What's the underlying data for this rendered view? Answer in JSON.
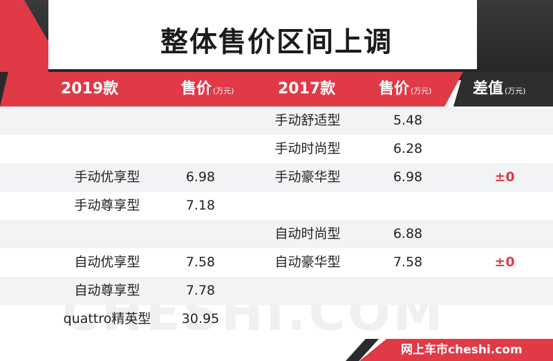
{
  "title": "整体售价区间上调",
  "header": {
    "col1": "2019款",
    "col2": "售价",
    "col2_unit": "(万元)",
    "col3": "2017款",
    "col4": "售价",
    "col4_unit": "(万元)",
    "col5": "差值",
    "col5_unit": "(万元)"
  },
  "rows": [
    {
      "model2019": "",
      "price2019": "",
      "model2017": "手动舒适型",
      "price2017": "5.48",
      "diff": ""
    },
    {
      "model2019": "",
      "price2019": "",
      "model2017": "手动时尚型",
      "price2017": "6.28",
      "diff": ""
    },
    {
      "model2019": "手动优享型",
      "price2019": "6.98",
      "model2017": "手动豪华型",
      "price2017": "6.98",
      "diff": "±0"
    },
    {
      "model2019": "手动尊享型",
      "price2019": "7.18",
      "model2017": "",
      "price2017": "",
      "diff": ""
    },
    {
      "model2019": "",
      "price2019": "",
      "model2017": "自动时尚型",
      "price2017": "6.88",
      "diff": ""
    },
    {
      "model2019": "自动优享型",
      "price2019": "7.58",
      "model2017": "自动豪华型",
      "price2017": "7.58",
      "diff": "±0"
    },
    {
      "model2019": "自动尊享型",
      "price2019": "7.78",
      "model2017": "",
      "price2017": "",
      "diff": ""
    },
    {
      "model2019": "quattro精英型",
      "price2019": "30.95",
      "model2017": "",
      "price2017": "",
      "diff": ""
    }
  ],
  "watermark": "CHESHI.COM",
  "footer": "网上车市cheshi.com",
  "colors": {
    "accent": "#e03a46",
    "dark": "#2b2b2b",
    "row_shade": "#f2f3f5"
  }
}
